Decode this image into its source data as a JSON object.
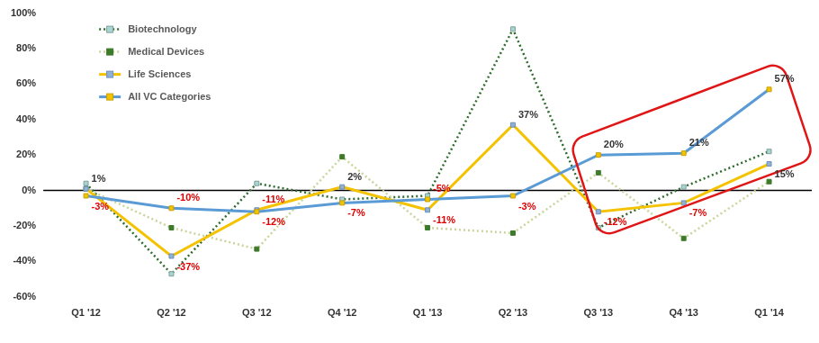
{
  "chart_data": {
    "type": "line",
    "categories": [
      "Q1 '12",
      "Q2 '12",
      "Q3 '12",
      "Q4 '12",
      "Q1 '13",
      "Q2 '13",
      "Q3 '13",
      "Q4 '13",
      "Q1 '14"
    ],
    "ylim": [
      -60,
      100
    ],
    "yticks": [
      {
        "value": -60,
        "label": "-60%"
      },
      {
        "value": -40,
        "label": "-40%"
      },
      {
        "value": -20,
        "label": "-20%"
      },
      {
        "value": 0,
        "label": "0%"
      },
      {
        "value": 20,
        "label": "20%"
      },
      {
        "value": 40,
        "label": "40%"
      },
      {
        "value": 60,
        "label": "60%"
      },
      {
        "value": 80,
        "label": "80%"
      },
      {
        "value": 100,
        "label": "100%"
      }
    ],
    "grid": false,
    "legend": "top-left",
    "series": [
      {
        "name": "Biotechnology",
        "color": "#2e6b2e",
        "line_style": "dotted",
        "marker": "square",
        "values": [
          4,
          -47,
          4,
          -5,
          -3,
          91,
          -21,
          2,
          22
        ]
      },
      {
        "name": "Medical Devices",
        "color": "#c9d59b",
        "line_style": "dotted",
        "marker": "square",
        "values": [
          1,
          -21,
          -33,
          19,
          -21,
          -24,
          10,
          -27,
          5
        ]
      },
      {
        "name": "Life Sciences",
        "color": "#f5c200",
        "line_style": "solid",
        "marker": "square",
        "values": [
          1,
          -37,
          -11,
          2,
          -11,
          37,
          -12,
          -7,
          15
        ],
        "data_labels": true,
        "value_labels": [
          "1%",
          "-37%",
          "-11%",
          "2%",
          "-11%",
          "37%",
          "-12%",
          "-7%",
          "15%"
        ]
      },
      {
        "name": "All VC Categories",
        "color": "#5b9bd5",
        "line_style": "solid",
        "marker": "square",
        "values": [
          -3,
          -10,
          -12,
          -7,
          -5,
          -3,
          20,
          21,
          57
        ],
        "data_labels": true,
        "value_labels": [
          "-3%",
          "-10%",
          "-12%",
          "-7%",
          "-5%",
          "-3%",
          "20%",
          "21%",
          "57%"
        ]
      }
    ]
  }
}
